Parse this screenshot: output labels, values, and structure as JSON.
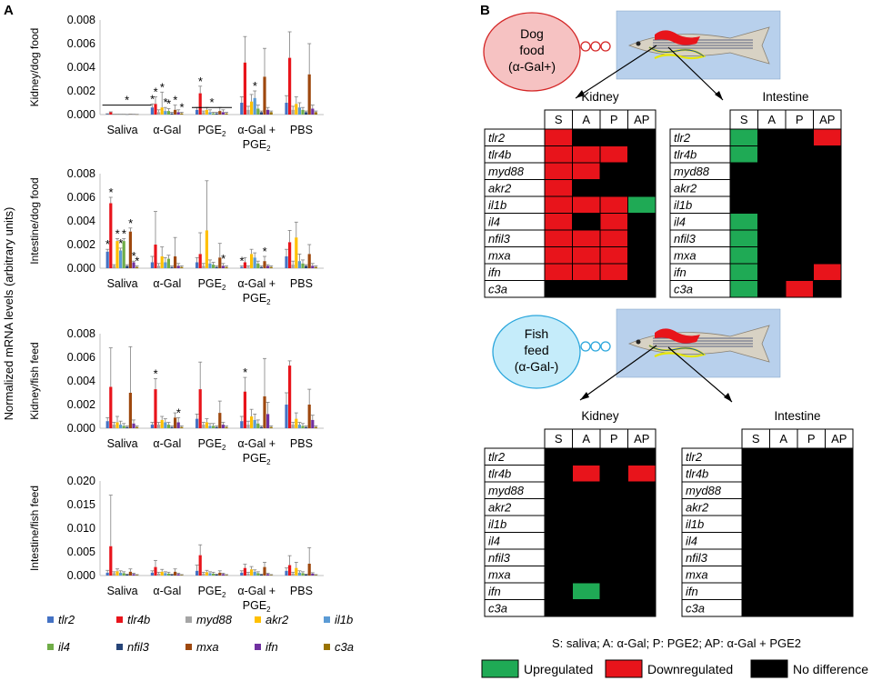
{
  "panel_labels": {
    "a": "A",
    "b": "B"
  },
  "y_common_label": "Normalized mRNA levels (arbitrary units)",
  "genes": [
    "tlr2",
    "tlr4b",
    "myd88",
    "akr2",
    "il1b",
    "il4",
    "nfil3",
    "mxa",
    "ifn",
    "c3a"
  ],
  "gene_colors": [
    "#4472c4",
    "#e8141b",
    "#a5a5a5",
    "#ffc000",
    "#5b9bd5",
    "#70ad47",
    "#264478",
    "#9e480e",
    "#7030a0",
    "#997300"
  ],
  "groups": [
    "Saliva",
    "α-Gal",
    "PGE",
    "α-Gal +",
    "PBS"
  ],
  "group_subline": "PGE",
  "subscript2": "2",
  "chart_data": [
    {
      "type": "bar",
      "title": "",
      "ylabel": "Kidney/dog food",
      "ylim": [
        0,
        0.008
      ],
      "ticks": [
        "0.000",
        "0.002",
        "0.004",
        "0.006",
        "0.008"
      ],
      "tick_values": [
        0,
        0.002,
        0.004,
        0.006,
        0.008
      ],
      "categories": [
        "Saliva",
        "α-Gal",
        "PGE2",
        "α-Gal + PGE2",
        "PBS"
      ],
      "values": [
        [
          5e-05,
          0.0002,
          2e-05,
          2e-05,
          2e-05,
          2e-05,
          1e-05,
          3e-05,
          2e-05,
          1e-05
        ],
        [
          0.0006,
          0.0009,
          0.0002,
          0.0006,
          0.0003,
          0.0003,
          0.0001,
          0.0004,
          0.0002,
          0.0001
        ],
        [
          0.0004,
          0.0018,
          0.0002,
          0.0004,
          0.0002,
          0.0001,
          0.0001,
          0.0003,
          0.0002,
          0.0001
        ],
        [
          0.001,
          0.0044,
          0.0004,
          0.0011,
          0.0014,
          0.0005,
          0.0002,
          0.0032,
          0.0004,
          0.0002
        ],
        [
          0.001,
          0.0048,
          0.0004,
          0.0009,
          0.0006,
          0.0004,
          0.0002,
          0.0034,
          0.0005,
          0.0002
        ]
      ],
      "errors": [
        [
          2e-05,
          3e-05,
          1e-05,
          1e-05,
          1e-05,
          1e-05,
          1e-05,
          1e-05,
          1e-05,
          1e-05
        ],
        [
          0.0003,
          0.0006,
          0.0002,
          0.0013,
          0.0003,
          0.0002,
          0.0001,
          0.0004,
          0.0002,
          0.0001
        ],
        [
          0.0002,
          0.0006,
          0.0001,
          0.0002,
          0.0002,
          0.0001,
          0.0001,
          0.0003,
          0.0002,
          0.0001
        ],
        [
          0.0005,
          0.0022,
          0.0003,
          0.0006,
          0.0006,
          0.0003,
          0.0001,
          0.0024,
          0.0002,
          0.0001
        ],
        [
          0.0006,
          0.0022,
          0.0003,
          0.0006,
          0.0004,
          0.0002,
          0.0001,
          0.0026,
          0.0003,
          0.0001
        ]
      ],
      "stars": [
        [
          0,
          -1,
          "*"
        ],
        [
          1,
          1,
          "*"
        ],
        [
          1,
          3,
          "*"
        ],
        [
          1,
          4,
          "*"
        ],
        [
          1,
          5,
          "*"
        ],
        [
          1,
          7,
          "*"
        ],
        [
          1,
          9,
          "*"
        ],
        [
          1,
          0,
          "*"
        ],
        [
          2,
          1,
          "*"
        ],
        [
          2,
          -2,
          "*"
        ],
        [
          3,
          4,
          "*"
        ]
      ]
    },
    {
      "type": "bar",
      "title": "",
      "ylabel": "Intestine/dog food",
      "ylim": [
        0,
        0.008
      ],
      "ticks": [
        "0.000",
        "0.002",
        "0.004",
        "0.006",
        "0.008"
      ],
      "tick_values": [
        0,
        0.002,
        0.004,
        0.006,
        0.008
      ],
      "categories": [
        "Saliva",
        "α-Gal",
        "PGE2",
        "α-Gal + PGE2",
        "PBS"
      ],
      "values": [
        [
          0.0014,
          0.0055,
          0.0002,
          0.0023,
          0.0015,
          0.0023,
          0.0002,
          0.0031,
          0.0005,
          0.0001
        ],
        [
          0.0005,
          0.002,
          0.0002,
          0.001,
          0.0005,
          0.0008,
          0.0001,
          0.001,
          0.0002,
          0.0001
        ],
        [
          0.0005,
          0.0012,
          0.0002,
          0.0032,
          0.0004,
          0.0003,
          0.0001,
          0.0009,
          0.0002,
          0.0001
        ],
        [
          0.0001,
          0.0005,
          0.0001,
          0.0012,
          0.0009,
          0.0004,
          0.0001,
          0.0006,
          0.0002,
          0.0001
        ],
        [
          0.001,
          0.0022,
          0.0003,
          0.0026,
          0.0006,
          0.0004,
          0.0002,
          0.0012,
          0.0002,
          0.0001
        ]
      ],
      "errors": [
        [
          0.0002,
          0.0005,
          0.0001,
          0.0002,
          0.0002,
          0.0002,
          0.0001,
          0.0003,
          0.0001,
          0.0001
        ],
        [
          0.0005,
          0.0028,
          0.0002,
          0.0008,
          0.0004,
          0.0003,
          0.0001,
          0.0016,
          0.0002,
          0.0001
        ],
        [
          0.0004,
          0.0018,
          0.0002,
          0.0042,
          0.0003,
          0.0002,
          0.0001,
          0.0012,
          0.0002,
          0.0001
        ],
        [
          0.0001,
          0.0004,
          0.0001,
          0.0004,
          0.0004,
          0.0002,
          0.0001,
          0.0004,
          0.0001,
          0.0001
        ],
        [
          0.0006,
          0.001,
          0.0003,
          0.0013,
          0.0006,
          0.0003,
          0.0001,
          0.0008,
          0.0002,
          0.0001
        ]
      ],
      "stars": [
        [
          0,
          0,
          "*"
        ],
        [
          0,
          1,
          "*"
        ],
        [
          0,
          3,
          "*"
        ],
        [
          0,
          4,
          "*"
        ],
        [
          0,
          5,
          "*"
        ],
        [
          0,
          7,
          "*"
        ],
        [
          0,
          8,
          "*"
        ],
        [
          0,
          9,
          "*"
        ],
        [
          2,
          8,
          "*"
        ],
        [
          3,
          0,
          "*"
        ],
        [
          3,
          7,
          "*"
        ]
      ]
    },
    {
      "type": "bar",
      "title": "",
      "ylabel": "Kidney/fish feed",
      "ylim": [
        0,
        0.008
      ],
      "ticks": [
        "0.000",
        "0.002",
        "0.004",
        "0.006",
        "0.008"
      ],
      "tick_values": [
        0,
        0.002,
        0.004,
        0.006,
        0.008
      ],
      "categories": [
        "Saliva",
        "α-Gal",
        "PGE2",
        "α-Gal + PGE2",
        "PBS"
      ],
      "values": [
        [
          0.0006,
          0.0035,
          0.0003,
          0.0005,
          0.0003,
          0.0002,
          0.0001,
          0.003,
          0.0004,
          0.0001
        ],
        [
          0.0003,
          0.0033,
          0.0003,
          0.0007,
          0.0005,
          0.0003,
          0.0001,
          0.0009,
          0.0005,
          0.0001
        ],
        [
          0.0008,
          0.0033,
          0.0003,
          0.0005,
          0.0002,
          0.0002,
          0.0001,
          0.0013,
          0.0003,
          0.0001
        ],
        [
          0.0006,
          0.0031,
          0.0003,
          0.001,
          0.0007,
          0.0004,
          0.0001,
          0.0027,
          0.0012,
          0.0001
        ],
        [
          0.002,
          0.0053,
          0.0003,
          0.0008,
          0.0003,
          0.0002,
          0.0001,
          0.002,
          0.0007,
          0.0001
        ]
      ],
      "errors": [
        [
          0.0003,
          0.0033,
          0.0002,
          0.0005,
          0.0003,
          0.0002,
          0.0001,
          0.0039,
          0.0003,
          0.0001
        ],
        [
          0.0002,
          0.0009,
          0.0002,
          0.0003,
          0.0003,
          0.0002,
          0.0001,
          0.0004,
          0.0004,
          0.0001
        ],
        [
          0.0004,
          0.0023,
          0.0002,
          0.0003,
          0.0002,
          0.0002,
          0.0001,
          0.001,
          0.0002,
          0.0001
        ],
        [
          0.0004,
          0.0012,
          0.0003,
          0.0006,
          0.0005,
          0.0003,
          0.0001,
          0.0032,
          0.001,
          0.0001
        ],
        [
          0.001,
          0.0004,
          0.0002,
          0.0005,
          0.0002,
          0.0002,
          0.0001,
          0.0013,
          0.0004,
          0.0001
        ]
      ],
      "stars": [
        [
          1,
          1,
          "*"
        ],
        [
          1,
          8,
          "*"
        ],
        [
          3,
          1,
          "*"
        ]
      ]
    },
    {
      "type": "bar",
      "title": "",
      "ylabel": "Intestine/fish feed",
      "ylim": [
        0,
        0.02
      ],
      "ticks": [
        "0.000",
        "0.005",
        "0.010",
        "0.015",
        "0.020"
      ],
      "tick_values": [
        0,
        0.005,
        0.01,
        0.015,
        0.02
      ],
      "categories": [
        "Saliva",
        "α-Gal",
        "PGE2",
        "α-Gal + PGE2",
        "PBS"
      ],
      "values": [
        [
          0.0006,
          0.0062,
          0.0005,
          0.0009,
          0.0006,
          0.0005,
          0.0002,
          0.0008,
          0.0003,
          0.0001
        ],
        [
          0.0006,
          0.0018,
          0.0004,
          0.0008,
          0.0005,
          0.0004,
          0.0002,
          0.0008,
          0.0003,
          0.0001
        ],
        [
          0.001,
          0.0043,
          0.0004,
          0.0007,
          0.0005,
          0.0004,
          0.0002,
          0.0006,
          0.0003,
          0.0001
        ],
        [
          0.0006,
          0.0016,
          0.0004,
          0.0013,
          0.0008,
          0.0005,
          0.0002,
          0.0018,
          0.0003,
          0.0001
        ],
        [
          0.001,
          0.0022,
          0.0004,
          0.0016,
          0.0006,
          0.0005,
          0.0002,
          0.0025,
          0.0004,
          0.0001
        ]
      ],
      "errors": [
        [
          0.0005,
          0.0108,
          0.0003,
          0.0005,
          0.0004,
          0.0003,
          0.0001,
          0.0006,
          0.0002,
          0.0001
        ],
        [
          0.0004,
          0.0014,
          0.0003,
          0.0005,
          0.0003,
          0.0003,
          0.0001,
          0.0006,
          0.0002,
          0.0001
        ],
        [
          0.0012,
          0.0022,
          0.0003,
          0.0004,
          0.0003,
          0.0003,
          0.0001,
          0.0004,
          0.0002,
          0.0001
        ],
        [
          0.0004,
          0.0008,
          0.0003,
          0.0006,
          0.0004,
          0.0003,
          0.0001,
          0.001,
          0.0002,
          0.0001
        ],
        [
          0.0006,
          0.002,
          0.0003,
          0.0012,
          0.0004,
          0.0003,
          0.0001,
          0.0034,
          0.0002,
          0.0001
        ]
      ],
      "stars": []
    }
  ],
  "panel_b": {
    "dog_bubble": [
      "Dog",
      "food",
      "(α-Gal+)"
    ],
    "fish_bubble": [
      "Fish",
      "feed",
      "(α-Gal-)"
    ],
    "kidney_title": "Kidney",
    "intestine_title": "Intestine",
    "col_headers": [
      "S",
      "A",
      "P",
      "AP"
    ],
    "legend_caption": "S: saliva; A: α-Gal; P: PGE2; AP: α-Gal + PGE2",
    "legend_items": [
      {
        "label": "Upregulated",
        "color": "#1faa55"
      },
      {
        "label": "Downregulated",
        "color": "#e8141b"
      },
      {
        "label": "No difference",
        "color": "#000000"
      }
    ],
    "grids": {
      "dog_kidney": [
        [
          "R",
          "K",
          "K",
          "K"
        ],
        [
          "R",
          "R",
          "R",
          "K"
        ],
        [
          "R",
          "R",
          "K",
          "K"
        ],
        [
          "R",
          "K",
          "K",
          "K"
        ],
        [
          "R",
          "R",
          "R",
          "G"
        ],
        [
          "R",
          "K",
          "R",
          "K"
        ],
        [
          "R",
          "R",
          "R",
          "K"
        ],
        [
          "R",
          "R",
          "R",
          "K"
        ],
        [
          "R",
          "R",
          "R",
          "K"
        ],
        [
          "K",
          "K",
          "K",
          "K"
        ]
      ],
      "dog_intestine": [
        [
          "G",
          "K",
          "K",
          "R"
        ],
        [
          "G",
          "K",
          "K",
          "K"
        ],
        [
          "K",
          "K",
          "K",
          "K"
        ],
        [
          "K",
          "K",
          "K",
          "K"
        ],
        [
          "K",
          "K",
          "K",
          "K"
        ],
        [
          "G",
          "K",
          "K",
          "K"
        ],
        [
          "G",
          "K",
          "K",
          "K"
        ],
        [
          "G",
          "K",
          "K",
          "K"
        ],
        [
          "G",
          "K",
          "K",
          "R"
        ],
        [
          "G",
          "K",
          "R",
          "K"
        ]
      ],
      "fish_kidney": [
        [
          "K",
          "K",
          "K",
          "K"
        ],
        [
          "K",
          "R",
          "K",
          "R"
        ],
        [
          "K",
          "K",
          "K",
          "K"
        ],
        [
          "K",
          "K",
          "K",
          "K"
        ],
        [
          "K",
          "K",
          "K",
          "K"
        ],
        [
          "K",
          "K",
          "K",
          "K"
        ],
        [
          "K",
          "K",
          "K",
          "K"
        ],
        [
          "K",
          "K",
          "K",
          "K"
        ],
        [
          "K",
          "G",
          "K",
          "K"
        ],
        [
          "K",
          "K",
          "K",
          "K"
        ]
      ],
      "fish_intestine": [
        [
          "K",
          "K",
          "K",
          "K"
        ],
        [
          "K",
          "K",
          "K",
          "K"
        ],
        [
          "K",
          "K",
          "K",
          "K"
        ],
        [
          "K",
          "K",
          "K",
          "K"
        ],
        [
          "K",
          "K",
          "K",
          "K"
        ],
        [
          "K",
          "K",
          "K",
          "K"
        ],
        [
          "K",
          "K",
          "K",
          "K"
        ],
        [
          "K",
          "K",
          "K",
          "K"
        ],
        [
          "K",
          "K",
          "K",
          "K"
        ],
        [
          "K",
          "K",
          "K",
          "K"
        ]
      ]
    }
  }
}
